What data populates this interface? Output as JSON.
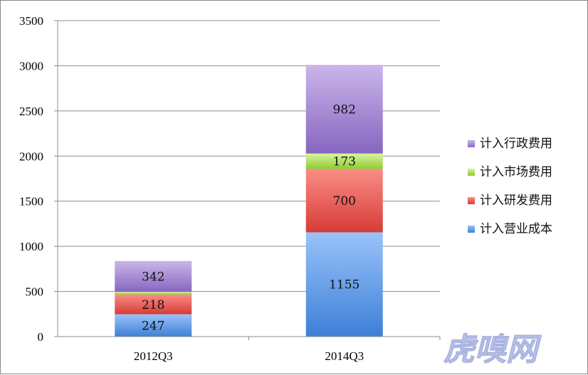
{
  "chart_data": {
    "type": "bar",
    "stacked": true,
    "categories": [
      "2012Q3",
      "2014Q3"
    ],
    "series": [
      {
        "name": "计入营业成本",
        "values": [
          247,
          1155
        ],
        "labels": [
          "247",
          "1155"
        ],
        "color_top": "#9ac3fb",
        "color_bottom": "#3d7fd6"
      },
      {
        "name": "计入研发费用",
        "values": [
          218,
          700
        ],
        "labels": [
          "218",
          "700"
        ],
        "color_top": "#fb8c87",
        "color_bottom": "#d63c36"
      },
      {
        "name": "计入市场费用",
        "values": [
          30,
          173
        ],
        "labels": [
          "",
          "173"
        ],
        "color_top": "#d9f59a",
        "color_bottom": "#8fc935"
      },
      {
        "name": "计入行政费用",
        "values": [
          342,
          982
        ],
        "labels": [
          "342",
          "982"
        ],
        "color_top": "#cbb5ea",
        "color_bottom": "#8766c0"
      }
    ],
    "ylim": [
      0,
      3500
    ],
    "yticks": [
      0,
      500,
      1000,
      1500,
      2000,
      2500,
      3000,
      3500
    ],
    "grid": true,
    "legend_position": "right",
    "title": "",
    "xlabel": "",
    "ylabel": ""
  },
  "watermark": "虎嗅网"
}
